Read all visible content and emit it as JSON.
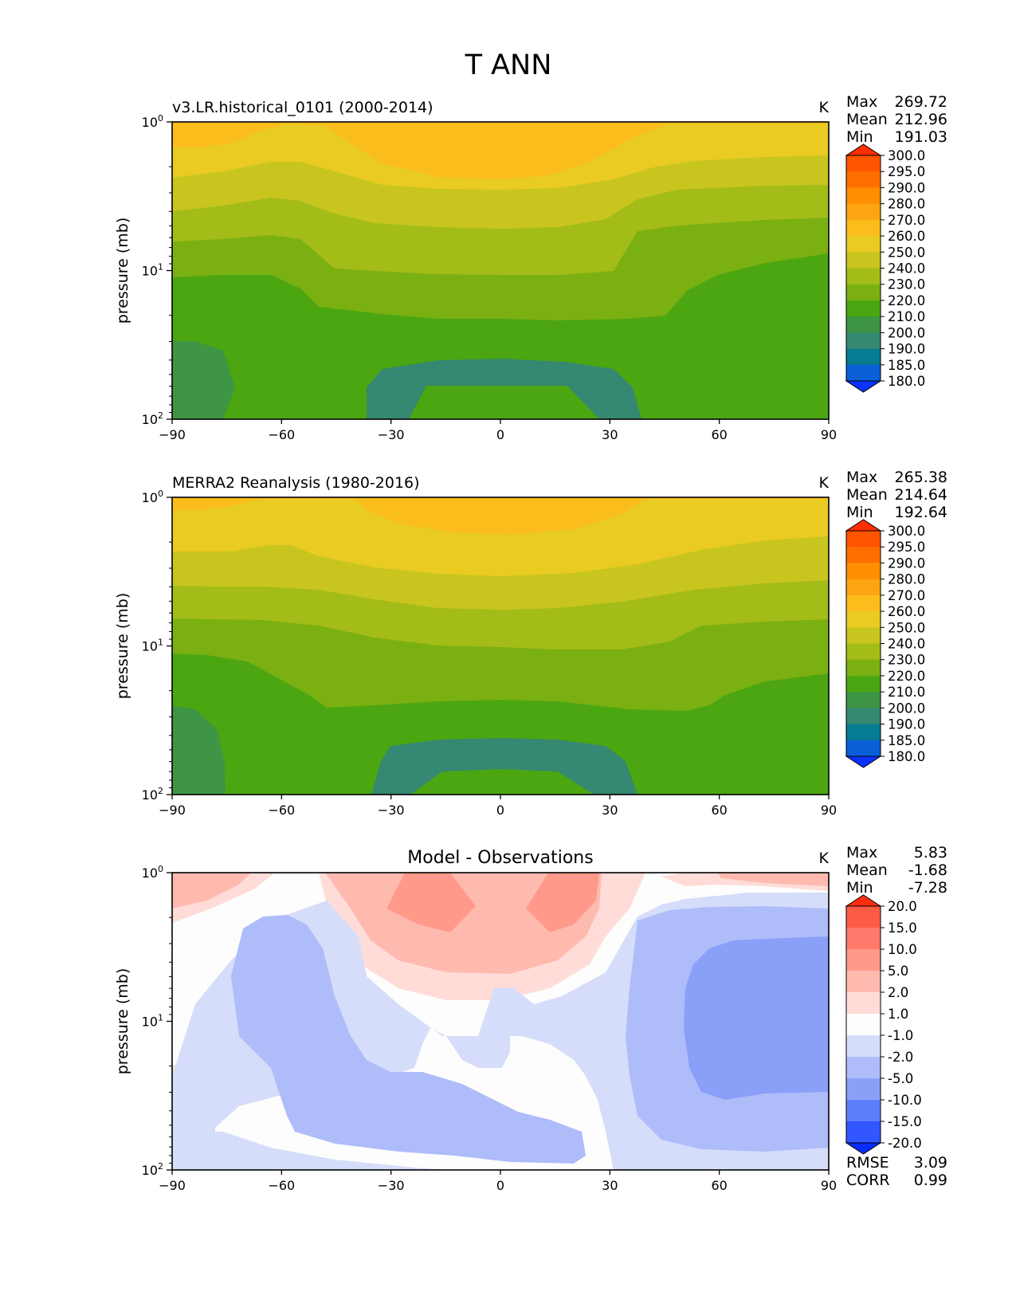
{
  "figure": {
    "title": "T ANN"
  },
  "chart_data": [
    {
      "type": "heatmap",
      "id": "model",
      "title": "v3.LR.historical_0101 (2000-2014)",
      "units": "K",
      "ylabel": "pressure (mb)",
      "xlabel": "",
      "xlim": [
        -90,
        90
      ],
      "ylim_log10": [
        2,
        0
      ],
      "xticks": [
        "−90",
        "−60",
        "−30",
        "0",
        "30",
        "60",
        "90"
      ],
      "yticks": [
        {
          "base": "10",
          "exp": "0"
        },
        {
          "base": "10",
          "exp": "1"
        },
        {
          "base": "10",
          "exp": "2"
        }
      ],
      "stats": {
        "max_label": "Max",
        "max": "269.72",
        "mean_label": "Mean",
        "mean": "212.96",
        "min_label": "Min",
        "min": "191.03"
      },
      "colorbar": {
        "labels": [
          "300.0",
          "295.0",
          "290.0",
          "280.0",
          "270.0",
          "260.0",
          "250.0",
          "240.0",
          "230.0",
          "220.0",
          "210.0",
          "200.0",
          "190.0",
          "185.0",
          "180.0"
        ],
        "colors": [
          "#ff2e00",
          "#ff5400",
          "#ff6f00",
          "#ff8e00",
          "#fea312",
          "#fbbd1b",
          "#e9cb22",
          "#c8c51f",
          "#a4bc18",
          "#7bb012",
          "#4ba611",
          "#3d9545",
          "#358872",
          "#067b91",
          "#0a5ed8",
          "#0a33ff"
        ]
      },
      "extra_stats": null
    },
    {
      "type": "heatmap",
      "id": "obs",
      "title": "MERRA2 Reanalysis (1980-2016)",
      "units": "K",
      "ylabel": "pressure (mb)",
      "xlabel": "",
      "xlim": [
        -90,
        90
      ],
      "ylim_log10": [
        2,
        0
      ],
      "xticks": [
        "−90",
        "−60",
        "−30",
        "0",
        "30",
        "60",
        "90"
      ],
      "yticks": [
        {
          "base": "10",
          "exp": "0"
        },
        {
          "base": "10",
          "exp": "1"
        },
        {
          "base": "10",
          "exp": "2"
        }
      ],
      "stats": {
        "max_label": "Max",
        "max": "265.38",
        "mean_label": "Mean",
        "mean": "214.64",
        "min_label": "Min",
        "min": "192.64"
      },
      "colorbar": {
        "labels": [
          "300.0",
          "295.0",
          "290.0",
          "280.0",
          "270.0",
          "260.0",
          "250.0",
          "240.0",
          "230.0",
          "220.0",
          "210.0",
          "200.0",
          "190.0",
          "185.0",
          "180.0"
        ],
        "colors": [
          "#ff2e00",
          "#ff5400",
          "#ff6f00",
          "#ff8e00",
          "#fea312",
          "#fbbd1b",
          "#e9cb22",
          "#c8c51f",
          "#a4bc18",
          "#7bb012",
          "#4ba611",
          "#3d9545",
          "#358872",
          "#067b91",
          "#0a5ed8",
          "#0a33ff"
        ]
      },
      "extra_stats": null
    },
    {
      "type": "heatmap",
      "id": "diff",
      "title": "Model - Observations",
      "units": "K",
      "ylabel": "pressure (mb)",
      "xlabel": "",
      "xlim": [
        -90,
        90
      ],
      "ylim_log10": [
        2,
        0
      ],
      "xticks": [
        "−90",
        "−60",
        "−30",
        "0",
        "30",
        "60",
        "90"
      ],
      "yticks": [
        {
          "base": "10",
          "exp": "0"
        },
        {
          "base": "10",
          "exp": "1"
        },
        {
          "base": "10",
          "exp": "2"
        }
      ],
      "stats": {
        "max_label": "Max",
        "max": "5.83",
        "mean_label": "Mean",
        "mean": "-1.68",
        "min_label": "Min",
        "min": "-7.28"
      },
      "colorbar": {
        "labels": [
          "20.0",
          "15.0",
          "10.0",
          "5.0",
          "2.0",
          "1.0",
          "-1.0",
          "-2.0",
          "-5.0",
          "-10.0",
          "-15.0",
          "-20.0"
        ],
        "colors": [
          "#ff2d10",
          "#ff5a45",
          "#ff7a6a",
          "#ff9a8a",
          "#ffbab0",
          "#ffdcd8",
          "#fdfdfd",
          "#d5ddfa",
          "#aebcfa",
          "#8aa0f8",
          "#5e7ffb",
          "#3256ff",
          "#0a2dff"
        ]
      },
      "extra_stats": {
        "rmse_label": "RMSE",
        "rmse": "3.09",
        "corr_label": "CORR",
        "corr": "0.99"
      }
    }
  ]
}
